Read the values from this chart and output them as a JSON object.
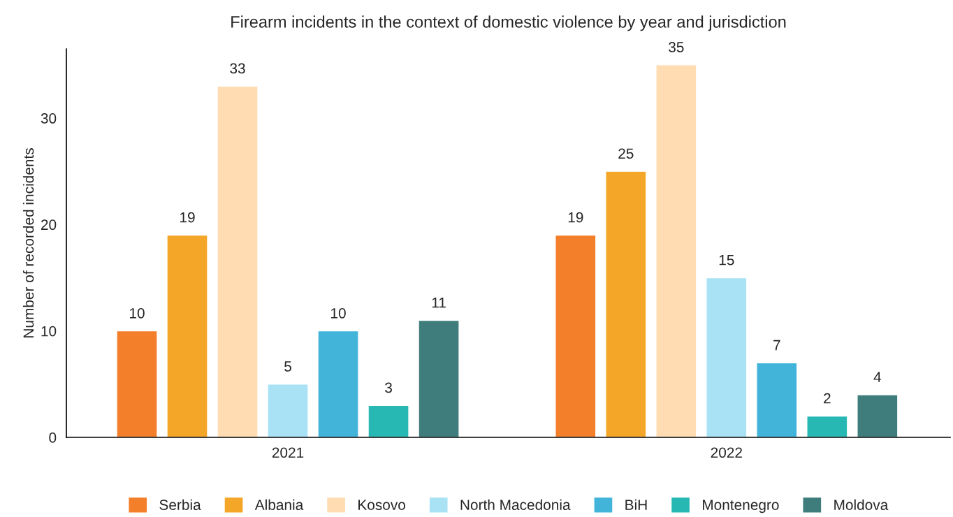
{
  "chart_data": {
    "type": "bar",
    "title": "Firearm incidents in the context of domestic violence by year and jurisdiction",
    "ylabel": "Number of recorded incidents",
    "categories": [
      "2021",
      "2022"
    ],
    "series": [
      {
        "name": "Serbia",
        "color": "#f47f2a",
        "values": [
          10,
          19
        ]
      },
      {
        "name": "Albania",
        "color": "#f4a628",
        "values": [
          19,
          25
        ]
      },
      {
        "name": "Kosovo",
        "color": "#ffdcb2",
        "values": [
          33,
          35
        ]
      },
      {
        "name": "North Macedonia",
        "color": "#a8e2f4",
        "values": [
          5,
          15
        ]
      },
      {
        "name": "BiH",
        "color": "#42b4da",
        "values": [
          10,
          7
        ]
      },
      {
        "name": "Montenegro",
        "color": "#28b8b4",
        "values": [
          3,
          2
        ]
      },
      {
        "name": "Moldova",
        "color": "#3e7d7b",
        "values": [
          11,
          4
        ]
      }
    ],
    "ylim": [
      0,
      36.5
    ],
    "yticks": [
      0,
      10,
      20,
      30
    ],
    "data_labels": true,
    "grid": false,
    "legend": "bottom"
  }
}
